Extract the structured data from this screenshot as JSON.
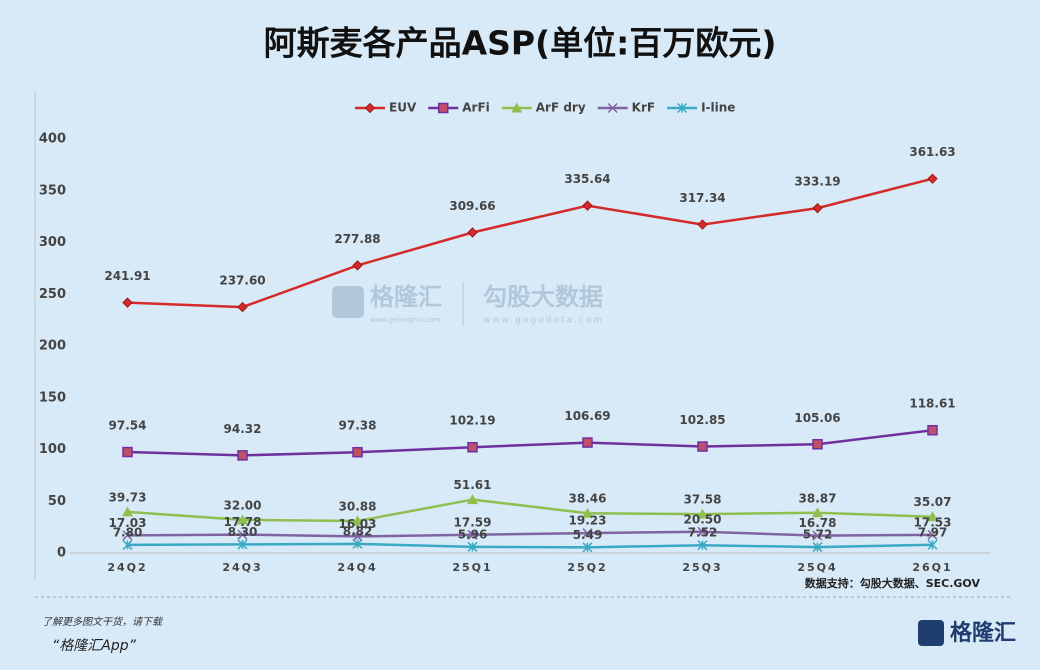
{
  "chart_data": {
    "type": "line",
    "title": "阿斯麦各产品ASP(单位:百万欧元)",
    "categories": [
      "24Q2",
      "24Q3",
      "24Q4",
      "25Q1",
      "25Q2",
      "25Q3",
      "25Q4",
      "26Q1"
    ],
    "series": [
      {
        "name": "EUV",
        "color": "#d42a2a",
        "marker": "diamond",
        "values": [
          241.91,
          237.6,
          277.88,
          309.66,
          335.64,
          317.34,
          333.19,
          361.63
        ],
        "value_labels": [
          "241.91",
          "237.60",
          "277.88",
          "309.66",
          "335.64",
          "317.34",
          "333.19",
          "361.63"
        ]
      },
      {
        "name": "ArFi",
        "color": "#7030a0",
        "marker": "square",
        "values": [
          97.54,
          94.32,
          97.38,
          102.19,
          106.69,
          102.85,
          105.06,
          118.61
        ],
        "value_labels": [
          "97.54",
          "94.32",
          "97.38",
          "102.19",
          "106.69",
          "102.85",
          "105.06",
          "118.61"
        ]
      },
      {
        "name": "ArF dry",
        "color": "#8fbf4f",
        "marker": "triangle",
        "values": [
          39.73,
          32,
          30.88,
          51.61,
          38.46,
          37.58,
          38.87,
          35.07
        ],
        "value_labels": [
          "39.73",
          "32.00",
          "30.88",
          "51.61",
          "38.46",
          "37.58",
          "38.87",
          "35.07"
        ]
      },
      {
        "name": "KrF",
        "color": "#8064a2",
        "marker": "x",
        "values": [
          17.03,
          17.78,
          16.03,
          17.59,
          19.23,
          20.5,
          16.78,
          17.53
        ],
        "value_labels": [
          "17.03",
          "17.78",
          "16.03",
          "17.59",
          "19.23",
          "20.50",
          "16.78",
          "17.53"
        ]
      },
      {
        "name": "I-line",
        "color": "#3aaac4",
        "marker": "star",
        "values": [
          7.8,
          8.3,
          8.82,
          5.96,
          5.49,
          7.52,
          5.72,
          7.97
        ],
        "value_labels": [
          "7.80",
          "8.30",
          "8.82",
          "5.96",
          "5.49",
          "7.52",
          "5.72",
          "7.97"
        ]
      }
    ],
    "ylim": [
      0,
      400
    ],
    "yticks": [
      0,
      50,
      100,
      150,
      200,
      250,
      300,
      350,
      400
    ],
    "grid": false,
    "legend": "top",
    "source": "数据支持：勾股大数据、SEC.GOV"
  },
  "watermark": {
    "brand": "格隆汇",
    "brand_url": "www.gelonghui.com",
    "partner": "勾股大数据",
    "partner_url": "www.gogudata.com"
  },
  "footer": {
    "line1": "了解更多图文干货，请下载",
    "line2": "“格隆汇App”",
    "logo": "格隆汇"
  }
}
